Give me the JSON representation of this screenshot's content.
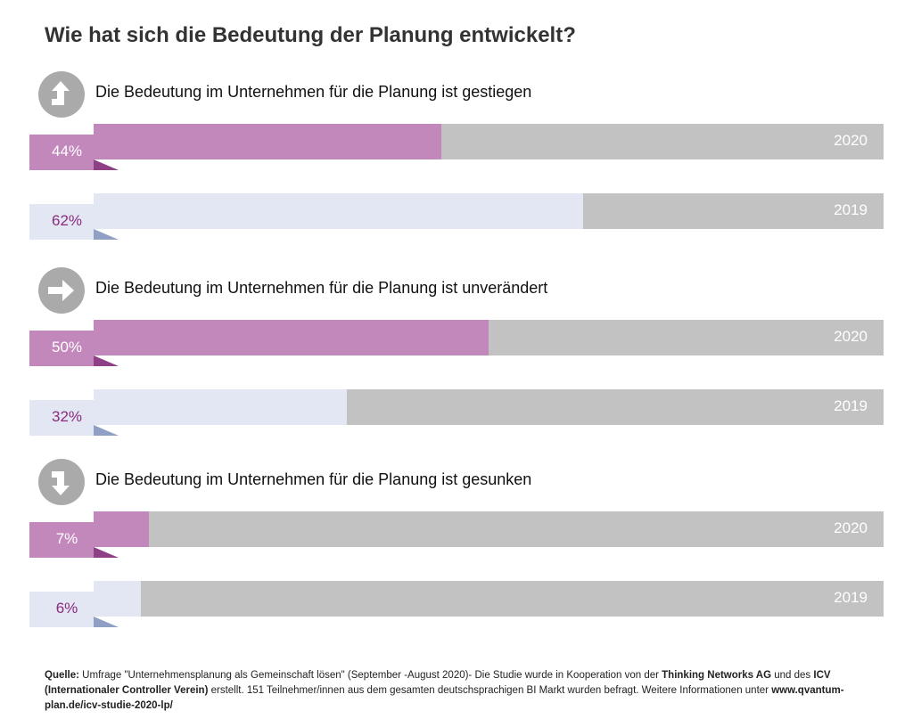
{
  "chart_data": {
    "type": "bar",
    "title": "Wie hat sich die Bedeutung der Planung entwickelt?",
    "xlim": [
      0,
      100
    ],
    "groups": [
      {
        "label": "Die Bedeutung im Unternehmen für die Planung ist gestiegen",
        "icon": "arrow-up-icon",
        "bars": [
          {
            "year": "2020",
            "value": 44,
            "value_label": "44%"
          },
          {
            "year": "2019",
            "value": 62,
            "value_label": "62%"
          }
        ]
      },
      {
        "label": "Die Bedeutung im Unternehmen für die Planung ist unverändert",
        "icon": "arrow-right-icon",
        "bars": [
          {
            "year": "2020",
            "value": 50,
            "value_label": "50%"
          },
          {
            "year": "2019",
            "value": 32,
            "value_label": "32%"
          }
        ]
      },
      {
        "label": "Die Bedeutung im Unternehmen für die Planung ist gesunken",
        "icon": "arrow-down-icon",
        "bars": [
          {
            "year": "2020",
            "value": 7,
            "value_label": "7%"
          },
          {
            "year": "2019",
            "value": 6,
            "value_label": "6%"
          }
        ]
      }
    ]
  },
  "colors": {
    "fill_2020": "#c287bb",
    "tab_2020": "#c287bb",
    "fold_2020": "#8f3f86",
    "text_2020": "#ffffff",
    "fill_2019": "#e3e6f3",
    "tab_2019": "#e3e6f3",
    "fold_2019": "#8fa0c4",
    "text_2019": "#8a2b7e",
    "track": "#c2c2c2",
    "icon": "#aaaaaa"
  },
  "footer": {
    "source_label": "Quelle:",
    "text_1": " Umfrage \"Unternehmensplanung als Gemeinschaft lösen\" (September -August 2020)- Die Studie wurde in Kooperation von der ",
    "partner_1": "Thinking Networks AG",
    "text_2": " und des ",
    "partner_2": "ICV (Internationaler Controller Verein)",
    "text_3": " erstellt. 151 Teilnehmer/innen aus dem gesamten deutschsprachigen BI Markt wurden befragt. Weitere Informationen unter ",
    "url": "www.qvantum-plan.de/icv-studie-2020-lp/"
  }
}
